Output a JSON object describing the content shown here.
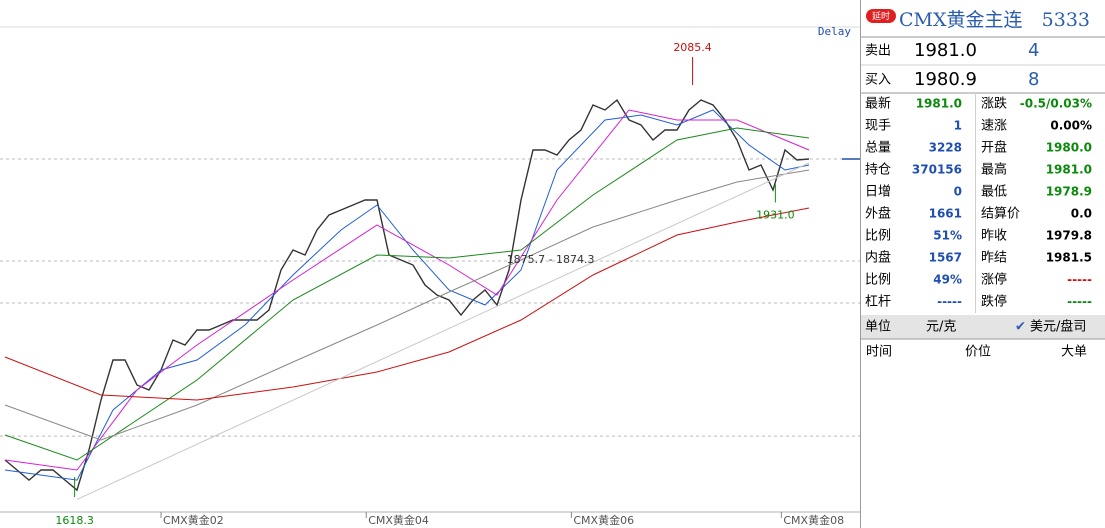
{
  "chart_data": {
    "type": "line",
    "badge": "Delay",
    "xlim": [
      -0.42,
      67.92
    ],
    "ylim": [
      1602.4,
      2145.9
    ],
    "xticks": [
      {
        "value": 13.0,
        "label": "CMX黄金02"
      },
      {
        "value": 30.1,
        "label": "CMX黄金04"
      },
      {
        "value": 47.2,
        "label": "CMX黄金06"
      },
      {
        "value": 64.7,
        "label": "CMX黄金08"
      }
    ],
    "hlines": [
      1977.1,
      1868.8,
      1824.2,
      1683.0
    ],
    "high": {
      "x": 57.3,
      "value": 2085.4
    },
    "low": {
      "x": 5.8,
      "value": 1618.3
    },
    "recent_low": {
      "x": 64.2,
      "value": 1931,
      "label": "1931.0"
    },
    "range_note": {
      "x": 41.8,
      "y": 1869.9,
      "text": "1875.7 - 1874.3"
    },
    "series": [
      {
        "color": "#333333",
        "x": [
          0,
          1,
          2,
          3,
          4,
          5,
          6,
          7,
          8,
          9,
          10,
          11,
          12,
          13,
          14,
          15,
          16,
          17,
          18,
          19,
          20,
          21,
          22,
          23,
          24,
          25,
          26,
          27,
          28,
          29,
          30,
          31,
          32,
          33,
          34,
          35,
          36,
          37,
          38,
          39,
          40,
          41,
          42,
          43,
          44,
          45,
          46,
          47,
          48,
          49,
          50,
          51,
          52,
          53,
          54,
          55,
          56,
          57,
          58,
          59,
          60,
          61,
          62,
          63,
          64,
          65,
          66,
          67
        ],
        "values": [
          1657.6,
          1647.0,
          1636.3,
          1647.0,
          1647.0,
          1636.3,
          1625.7,
          1668.2,
          1721.3,
          1763.7,
          1763.7,
          1737.2,
          1731.9,
          1753.1,
          1785.0,
          1779.7,
          1795.6,
          1795.6,
          1800.9,
          1806.2,
          1806.2,
          1806.2,
          1816.8,
          1859.3,
          1880.5,
          1875.2,
          1901.7,
          1917.7,
          1923.0,
          1928.3,
          1933.6,
          1933.6,
          1875.2,
          1869.9,
          1864.6,
          1843.4,
          1832.7,
          1827.4,
          1811.5,
          1827.4,
          1838.1,
          1822.1,
          1859.3,
          1933.6,
          1986.7,
          1986.7,
          1981.4,
          1997.3,
          2007.9,
          2034.4,
          2029.1,
          2039.8,
          2018.5,
          2013.2,
          1997.3,
          2007.9,
          2007.9,
          2029.1,
          2039.8,
          2034.4,
          2018.5,
          1997.3,
          1965.4,
          1970.7,
          1944.2,
          1986.7,
          1976.1,
          1977.1
        ]
      },
      {
        "color": "#1f5fd6",
        "x": [
          0,
          6,
          9,
          13,
          16,
          20,
          24,
          28,
          31,
          34,
          37,
          40,
          43,
          46,
          50,
          53,
          56,
          59,
          62,
          65,
          67
        ],
        "values": [
          1647.0,
          1636.3,
          1710.7,
          1753.1,
          1763.7,
          1800.9,
          1854.0,
          1901.7,
          1928.3,
          1880.5,
          1838.1,
          1822.1,
          1859.3,
          1965.4,
          2018.5,
          2023.8,
          2013.2,
          2029.1,
          1992.0,
          1965.4,
          1970.7
        ]
      },
      {
        "color": "#d61fd6",
        "x": [
          0,
          6,
          11,
          16,
          24,
          31,
          37,
          41,
          46,
          52,
          56,
          61,
          65,
          67
        ],
        "values": [
          1657.6,
          1647.0,
          1731.9,
          1779.7,
          1848.7,
          1907.1,
          1864.6,
          1832.7,
          1933.6,
          2029.1,
          2018.5,
          2018.5,
          1997.3,
          1986.7
        ]
      },
      {
        "color": "#1a8a1a",
        "x": [
          0,
          6,
          16,
          24,
          31,
          37,
          43,
          49,
          56,
          61,
          67
        ],
        "values": [
          1684.1,
          1657.6,
          1742.5,
          1827.4,
          1875.2,
          1872.0,
          1880.5,
          1938.9,
          1997.3,
          2010.0,
          1999.4
        ]
      },
      {
        "color": "#888888",
        "x": [
          0,
          8,
          16,
          24,
          31,
          37,
          43,
          49,
          56,
          61,
          67
        ],
        "values": [
          1716.0,
          1678.8,
          1716.0,
          1761.6,
          1800.9,
          1835.9,
          1869.9,
          1904.9,
          1933.6,
          1952.7,
          1965.4
        ]
      },
      {
        "color": "#cc1010",
        "x": [
          0,
          8,
          16,
          24,
          31,
          37,
          43,
          49,
          56,
          61,
          67
        ],
        "values": [
          1766.9,
          1726.6,
          1721.3,
          1735.1,
          1751.0,
          1772.2,
          1806.2,
          1854.0,
          1896.4,
          1910.2,
          1925.1
        ]
      },
      {
        "color": "#c8c8c8",
        "x": [
          6,
          67
        ],
        "values": [
          1615.8,
          1972.9
        ]
      }
    ]
  },
  "panel": {
    "badge": "延时",
    "title": "CMX黄金主连",
    "code": "5333",
    "ask": {
      "label": "卖出",
      "price": "1981.0",
      "volume": "4"
    },
    "bid": {
      "label": "买入",
      "price": "1980.9",
      "volume": "8"
    },
    "stats": [
      [
        {
          "label": "最新",
          "value": "1981.0",
          "color": "#0a8a0a"
        },
        {
          "label": "涨跌",
          "value": "-0.5/0.03%",
          "color": "#0a8a0a"
        }
      ],
      [
        {
          "label": "现手",
          "value": "1",
          "color": "#1f4fb0"
        },
        {
          "label": "速涨",
          "value": "0.00%",
          "color": "#000000"
        }
      ],
      [
        {
          "label": "总量",
          "value": "3228",
          "color": "#1f4fb0"
        },
        {
          "label": "开盘",
          "value": "1980.0",
          "color": "#0a8a0a"
        }
      ],
      [
        {
          "label": "持仓",
          "value": "370156",
          "color": "#1f4fb0"
        },
        {
          "label": "最高",
          "value": "1981.0",
          "color": "#0a8a0a"
        }
      ],
      [
        {
          "label": "日增",
          "value": "0",
          "color": "#1f4fb0"
        },
        {
          "label": "最低",
          "value": "1978.9",
          "color": "#0a8a0a"
        }
      ],
      [
        {
          "label": "外盘",
          "value": "1661",
          "color": "#1f4fb0"
        },
        {
          "label": "结算价",
          "value": "0.0",
          "color": "#000000"
        }
      ],
      [
        {
          "label": "比例",
          "value": "51%",
          "color": "#1f4fb0"
        },
        {
          "label": "昨收",
          "value": "1979.8",
          "color": "#000000"
        }
      ],
      [
        {
          "label": "内盘",
          "value": "1567",
          "color": "#1f4fb0"
        },
        {
          "label": "昨结",
          "value": "1981.5",
          "color": "#000000"
        }
      ],
      [
        {
          "label": "比例",
          "value": "49%",
          "color": "#1f4fb0"
        },
        {
          "label": "涨停",
          "value": "-----",
          "color": "#d01010"
        }
      ],
      [
        {
          "label": "杠杆",
          "value": "-----",
          "color": "#1f4fb0"
        },
        {
          "label": "跌停",
          "value": "-----",
          "color": "#0a8a0a"
        }
      ]
    ],
    "unit": {
      "label": "单位",
      "options": [
        "元/克",
        "美元/盘司"
      ]
    },
    "trades_header": [
      "时间",
      "价位",
      "大单"
    ]
  }
}
